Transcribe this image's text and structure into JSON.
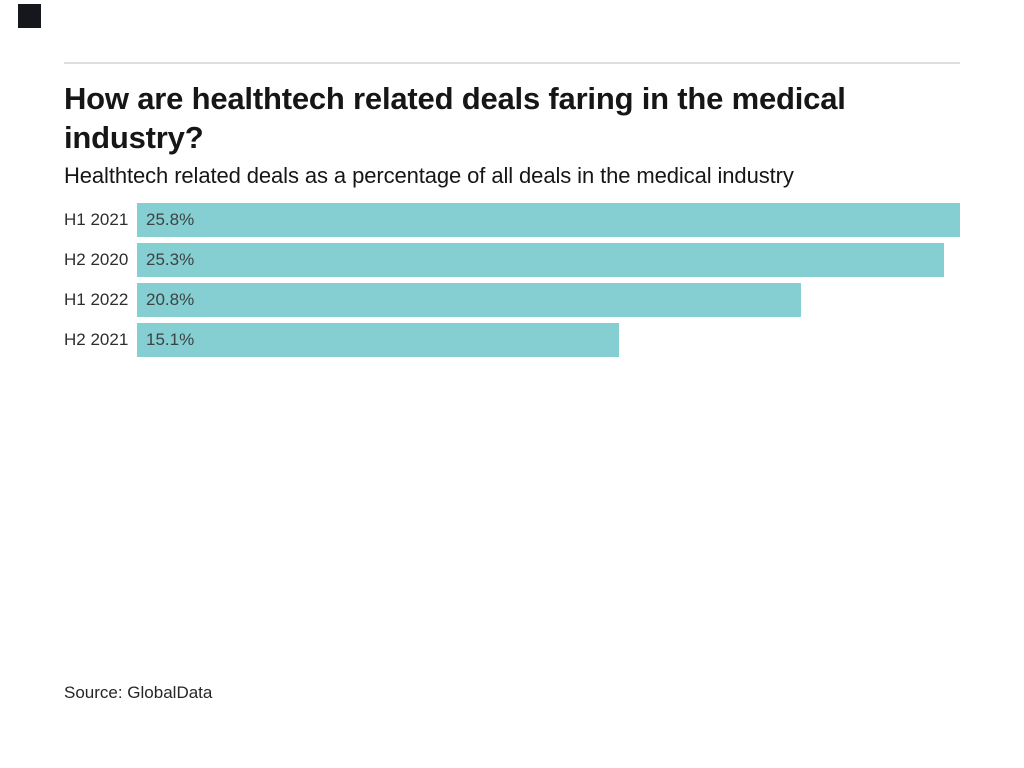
{
  "page": {
    "background": "#ffffff",
    "accent_color": "#85ced1",
    "logo": "dark-square-logo",
    "source_label": "Source: GlobalData"
  },
  "header": {
    "title": "How are healthtech related deals faring in the medical industry?",
    "title_lines": [
      "How are healthtech related deals faring in the medical",
      "industry?"
    ],
    "subtitle": "Healthtech related deals as a percentage of all deals in the medical industry"
  },
  "chart_data": {
    "type": "bar",
    "orientation": "horizontal",
    "title": "How are healthtech related deals faring in the medical industry?",
    "subtitle": "Healthtech related deals as a percentage of all deals in the medical industry",
    "categories": [
      "H1 2021",
      "H2 2020",
      "H1 2022",
      "H2 2021"
    ],
    "values": [
      25.8,
      25.3,
      20.8,
      15.1
    ],
    "value_labels": [
      "25.8%",
      "25.3%",
      "20.8%",
      "15.1%"
    ],
    "unit": "%",
    "xlim": [
      0,
      25.8
    ],
    "bar_color": "#85ced1",
    "grid": false,
    "legend": false,
    "value_label_position": "inside-left",
    "source": "Source: GlobalData"
  }
}
